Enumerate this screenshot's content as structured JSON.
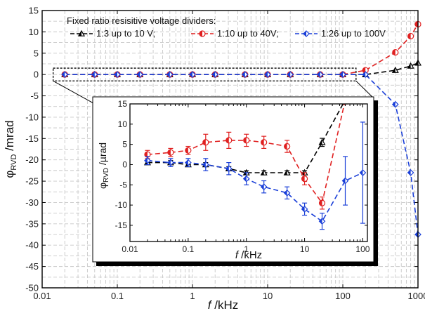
{
  "chart_data": [
    {
      "type": "line",
      "x_scale": "log",
      "xlim": [
        0.01,
        1000
      ],
      "ylim": [
        -50,
        15
      ],
      "xlabel_italic": "f",
      "xlabel_unit": " /kHz",
      "ylabel_sym": "φ",
      "ylabel_sub": "RVD",
      "ylabel_unit": " /mrad",
      "grid": true,
      "x_ticks": [
        0.01,
        0.1,
        1,
        10,
        100,
        1000
      ],
      "x_tick_labels": [
        "0.01",
        "0.1",
        "1",
        "10",
        "100",
        "1000"
      ],
      "y_ticks": [
        -50,
        -45,
        -40,
        -35,
        -30,
        -25,
        -20,
        -15,
        -10,
        -5,
        0,
        5,
        10,
        15
      ],
      "y_tick_labels": [
        "-50",
        "-45",
        "-40",
        "-35",
        "-30",
        "-25",
        "-20",
        "-15",
        "-10",
        "-5",
        "0",
        "5",
        "10",
        "15"
      ],
      "legend_title": "Fixed ratio resisitive voltage dividers:",
      "legend_placement": "top-left",
      "series": [
        {
          "name": "1:3 up to 10 V;",
          "color": "#000000",
          "marker": "triangle",
          "x": [
            0.02,
            0.05,
            0.1,
            0.2,
            0.5,
            1,
            2,
            5,
            10,
            20,
            50,
            100,
            200,
            500,
            800,
            1000
          ],
          "y": [
            0,
            0,
            0,
            0,
            0,
            0,
            0,
            0,
            0,
            0,
            0,
            0,
            0,
            1,
            2,
            2.7
          ]
        },
        {
          "name": "1:10 up to 40V;",
          "color": "#e02020",
          "marker": "circle",
          "x": [
            0.02,
            0.05,
            0.1,
            0.2,
            0.5,
            1,
            2,
            5,
            10,
            20,
            50,
            100,
            200,
            500,
            800,
            1000
          ],
          "y": [
            0,
            0,
            0,
            0,
            0,
            0,
            0,
            0,
            0,
            0,
            0,
            0,
            1,
            5.2,
            9,
            11.8
          ]
        },
        {
          "name": "1:26 up to 100V",
          "color": "#1a3fd8",
          "marker": "diamond",
          "x": [
            0.02,
            0.05,
            0.1,
            0.2,
            0.5,
            1,
            2,
            5,
            10,
            20,
            50,
            100,
            200,
            500,
            800,
            1000
          ],
          "y": [
            0,
            0,
            0,
            0,
            0,
            0,
            0,
            0,
            0,
            0,
            0,
            0,
            0,
            -7,
            -23,
            -37.5
          ]
        }
      ]
    },
    {
      "type": "line",
      "inset": true,
      "x_scale": "log",
      "xlim": [
        0.01,
        120
      ],
      "ylim": [
        -19,
        15
      ],
      "xlabel_italic": "f",
      "xlabel_unit": " /kHz",
      "ylabel_sym": "φ",
      "ylabel_sub": "RVD",
      "ylabel_unit": " /µrad",
      "x_ticks": [
        0.01,
        0.1,
        1,
        10,
        100
      ],
      "x_tick_labels": [
        "0.01",
        "0.1",
        "1",
        "10",
        "100"
      ],
      "y_ticks": [
        -15,
        -10,
        -5,
        0,
        5,
        10,
        15
      ],
      "y_tick_labels": [
        "-15",
        "-10",
        "-5",
        "0",
        "5",
        "10",
        "15"
      ],
      "series": [
        {
          "name": "1:3 up to 10 V;",
          "color": "#000000",
          "marker": "triangle",
          "x": [
            0.02,
            0.05,
            0.1,
            0.2,
            0.5,
            1,
            2,
            5,
            10,
            20,
            50
          ],
          "y": [
            0.5,
            0.5,
            0,
            0,
            -1,
            -2,
            -2,
            -2,
            -2,
            5.5,
            16
          ],
          "err": [
            0.5,
            0.5,
            0.5,
            0.5,
            0.5,
            0.5,
            0.5,
            0.5,
            0.5,
            1,
            1
          ]
        },
        {
          "name": "1:10 up to 40V;",
          "color": "#e02020",
          "marker": "circle",
          "x": [
            0.02,
            0.05,
            0.1,
            0.2,
            0.5,
            1,
            2,
            5,
            10,
            20,
            50
          ],
          "y": [
            2.5,
            3,
            3.5,
            5.5,
            6,
            6,
            5.5,
            4.5,
            -3.5,
            -9.5,
            16
          ],
          "err": [
            1,
            1,
            1,
            2,
            2,
            1.5,
            1.5,
            1.5,
            1.5,
            1.5,
            1
          ]
        },
        {
          "name": "1:26 up to 100V",
          "color": "#1a3fd8",
          "marker": "diamond",
          "x": [
            0.02,
            0.05,
            0.1,
            0.2,
            0.5,
            1,
            2,
            5,
            10,
            20,
            50,
            100
          ],
          "y": [
            1,
            0.5,
            0.5,
            0,
            -1,
            -3.5,
            -5.5,
            -7,
            -11,
            -14,
            -4,
            -2
          ],
          "err": [
            1,
            1,
            1,
            1.5,
            1.5,
            1.5,
            1.5,
            1.5,
            1.5,
            2,
            6,
            12.5
          ]
        }
      ]
    }
  ]
}
